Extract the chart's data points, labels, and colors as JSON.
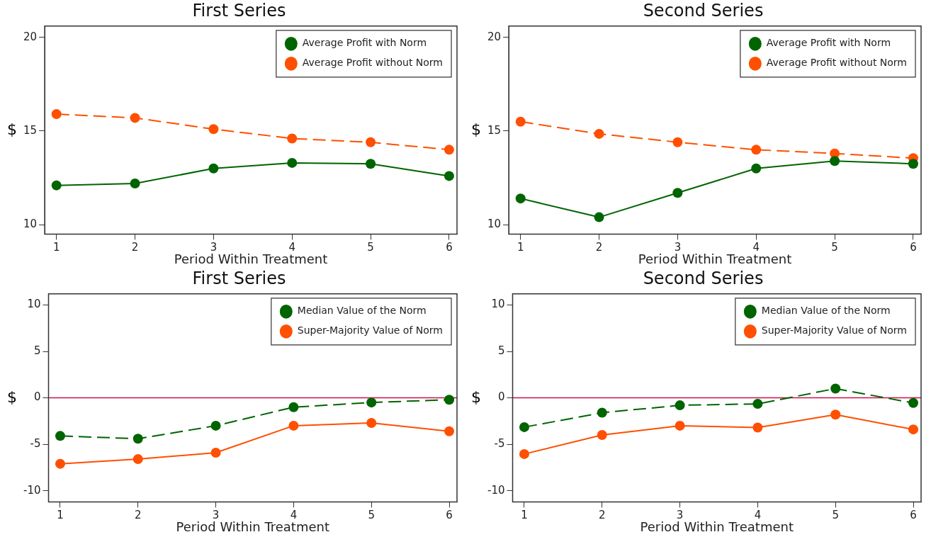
{
  "chart_data": [
    {
      "type": "line",
      "title": "First Series",
      "xlabel": "Period Within Treatment",
      "ylabel": "$",
      "x": [
        1,
        2,
        3,
        4,
        5,
        6
      ],
      "xlim": [
        0.85,
        6.1
      ],
      "xticks": [
        1,
        2,
        3,
        4,
        5,
        6
      ],
      "ylim": [
        9.5,
        20.6
      ],
      "yticks": [
        10,
        15,
        20
      ],
      "grid": false,
      "legend": "top right",
      "marker": "circle",
      "series": [
        {
          "name": "Average Profit with Norm",
          "color": "#006400",
          "line_style": "solid",
          "values": [
            12.1,
            12.2,
            13.0,
            13.3,
            13.25,
            12.6
          ]
        },
        {
          "name": "Average Profit without Norm",
          "color": "#ff4f00",
          "line_style": "dashed",
          "values": [
            15.9,
            15.7,
            15.1,
            14.6,
            14.4,
            14.0
          ]
        }
      ]
    },
    {
      "type": "line",
      "title": "Second Series",
      "xlabel": "Period Within Treatment",
      "ylabel": "$",
      "x": [
        1,
        2,
        3,
        4,
        5,
        6
      ],
      "xlim": [
        0.85,
        6.1
      ],
      "xticks": [
        1,
        2,
        3,
        4,
        5,
        6
      ],
      "ylim": [
        9.5,
        20.6
      ],
      "yticks": [
        10,
        15,
        20
      ],
      "grid": false,
      "legend": "top right",
      "marker": "circle",
      "series": [
        {
          "name": "Average Profit with Norm",
          "color": "#006400",
          "line_style": "solid",
          "values": [
            11.4,
            10.4,
            11.7,
            13.0,
            13.4,
            13.25
          ]
        },
        {
          "name": "Average Profit without Norm",
          "color": "#ff4f00",
          "line_style": "dashed",
          "values": [
            15.5,
            14.85,
            14.4,
            14.0,
            13.8,
            13.55
          ]
        }
      ]
    },
    {
      "type": "line",
      "title": "First Series",
      "xlabel": "Period Within Treatment",
      "ylabel": "$",
      "x": [
        1,
        2,
        3,
        4,
        5,
        6
      ],
      "xlim": [
        0.85,
        6.1
      ],
      "xticks": [
        1,
        2,
        3,
        4,
        5,
        6
      ],
      "ylim": [
        -11.2,
        11.2
      ],
      "yticks": [
        -10,
        -5,
        0,
        5,
        10
      ],
      "grid": false,
      "legend": "top right",
      "marker": "circle",
      "ref_lines": [
        {
          "axis": "y",
          "value": 0,
          "color": "#c8144b"
        }
      ],
      "series": [
        {
          "name": "Median Value of the Norm",
          "color": "#006400",
          "line_style": "dashed",
          "values": [
            -4.1,
            -4.4,
            -3.0,
            -1.0,
            -0.5,
            -0.2
          ]
        },
        {
          "name": "Super-Majority Value of Norm",
          "color": "#ff4f00",
          "line_style": "solid",
          "values": [
            -7.1,
            -6.6,
            -5.9,
            -3.0,
            -2.7,
            -3.6
          ]
        }
      ]
    },
    {
      "type": "line",
      "title": "Second Series",
      "xlabel": "Period Within Treatment",
      "ylabel": "$",
      "x": [
        1,
        2,
        3,
        4,
        5,
        6
      ],
      "xlim": [
        0.85,
        6.1
      ],
      "xticks": [
        1,
        2,
        3,
        4,
        5,
        6
      ],
      "ylim": [
        -11.2,
        11.2
      ],
      "yticks": [
        -10,
        -5,
        0,
        5,
        10
      ],
      "grid": false,
      "legend": "top right",
      "marker": "circle",
      "ref_lines": [
        {
          "axis": "y",
          "value": 0,
          "color": "#c8144b"
        }
      ],
      "series": [
        {
          "name": "Median Value of the Norm",
          "color": "#006400",
          "line_style": "dashed",
          "values": [
            -3.15,
            -1.6,
            -0.8,
            -0.65,
            1.0,
            -0.55
          ]
        },
        {
          "name": "Super-Majority Value of Norm",
          "color": "#ff4f00",
          "line_style": "solid",
          "values": [
            -6.05,
            -4.0,
            -3.0,
            -3.2,
            -1.8,
            -3.4
          ]
        }
      ]
    }
  ]
}
